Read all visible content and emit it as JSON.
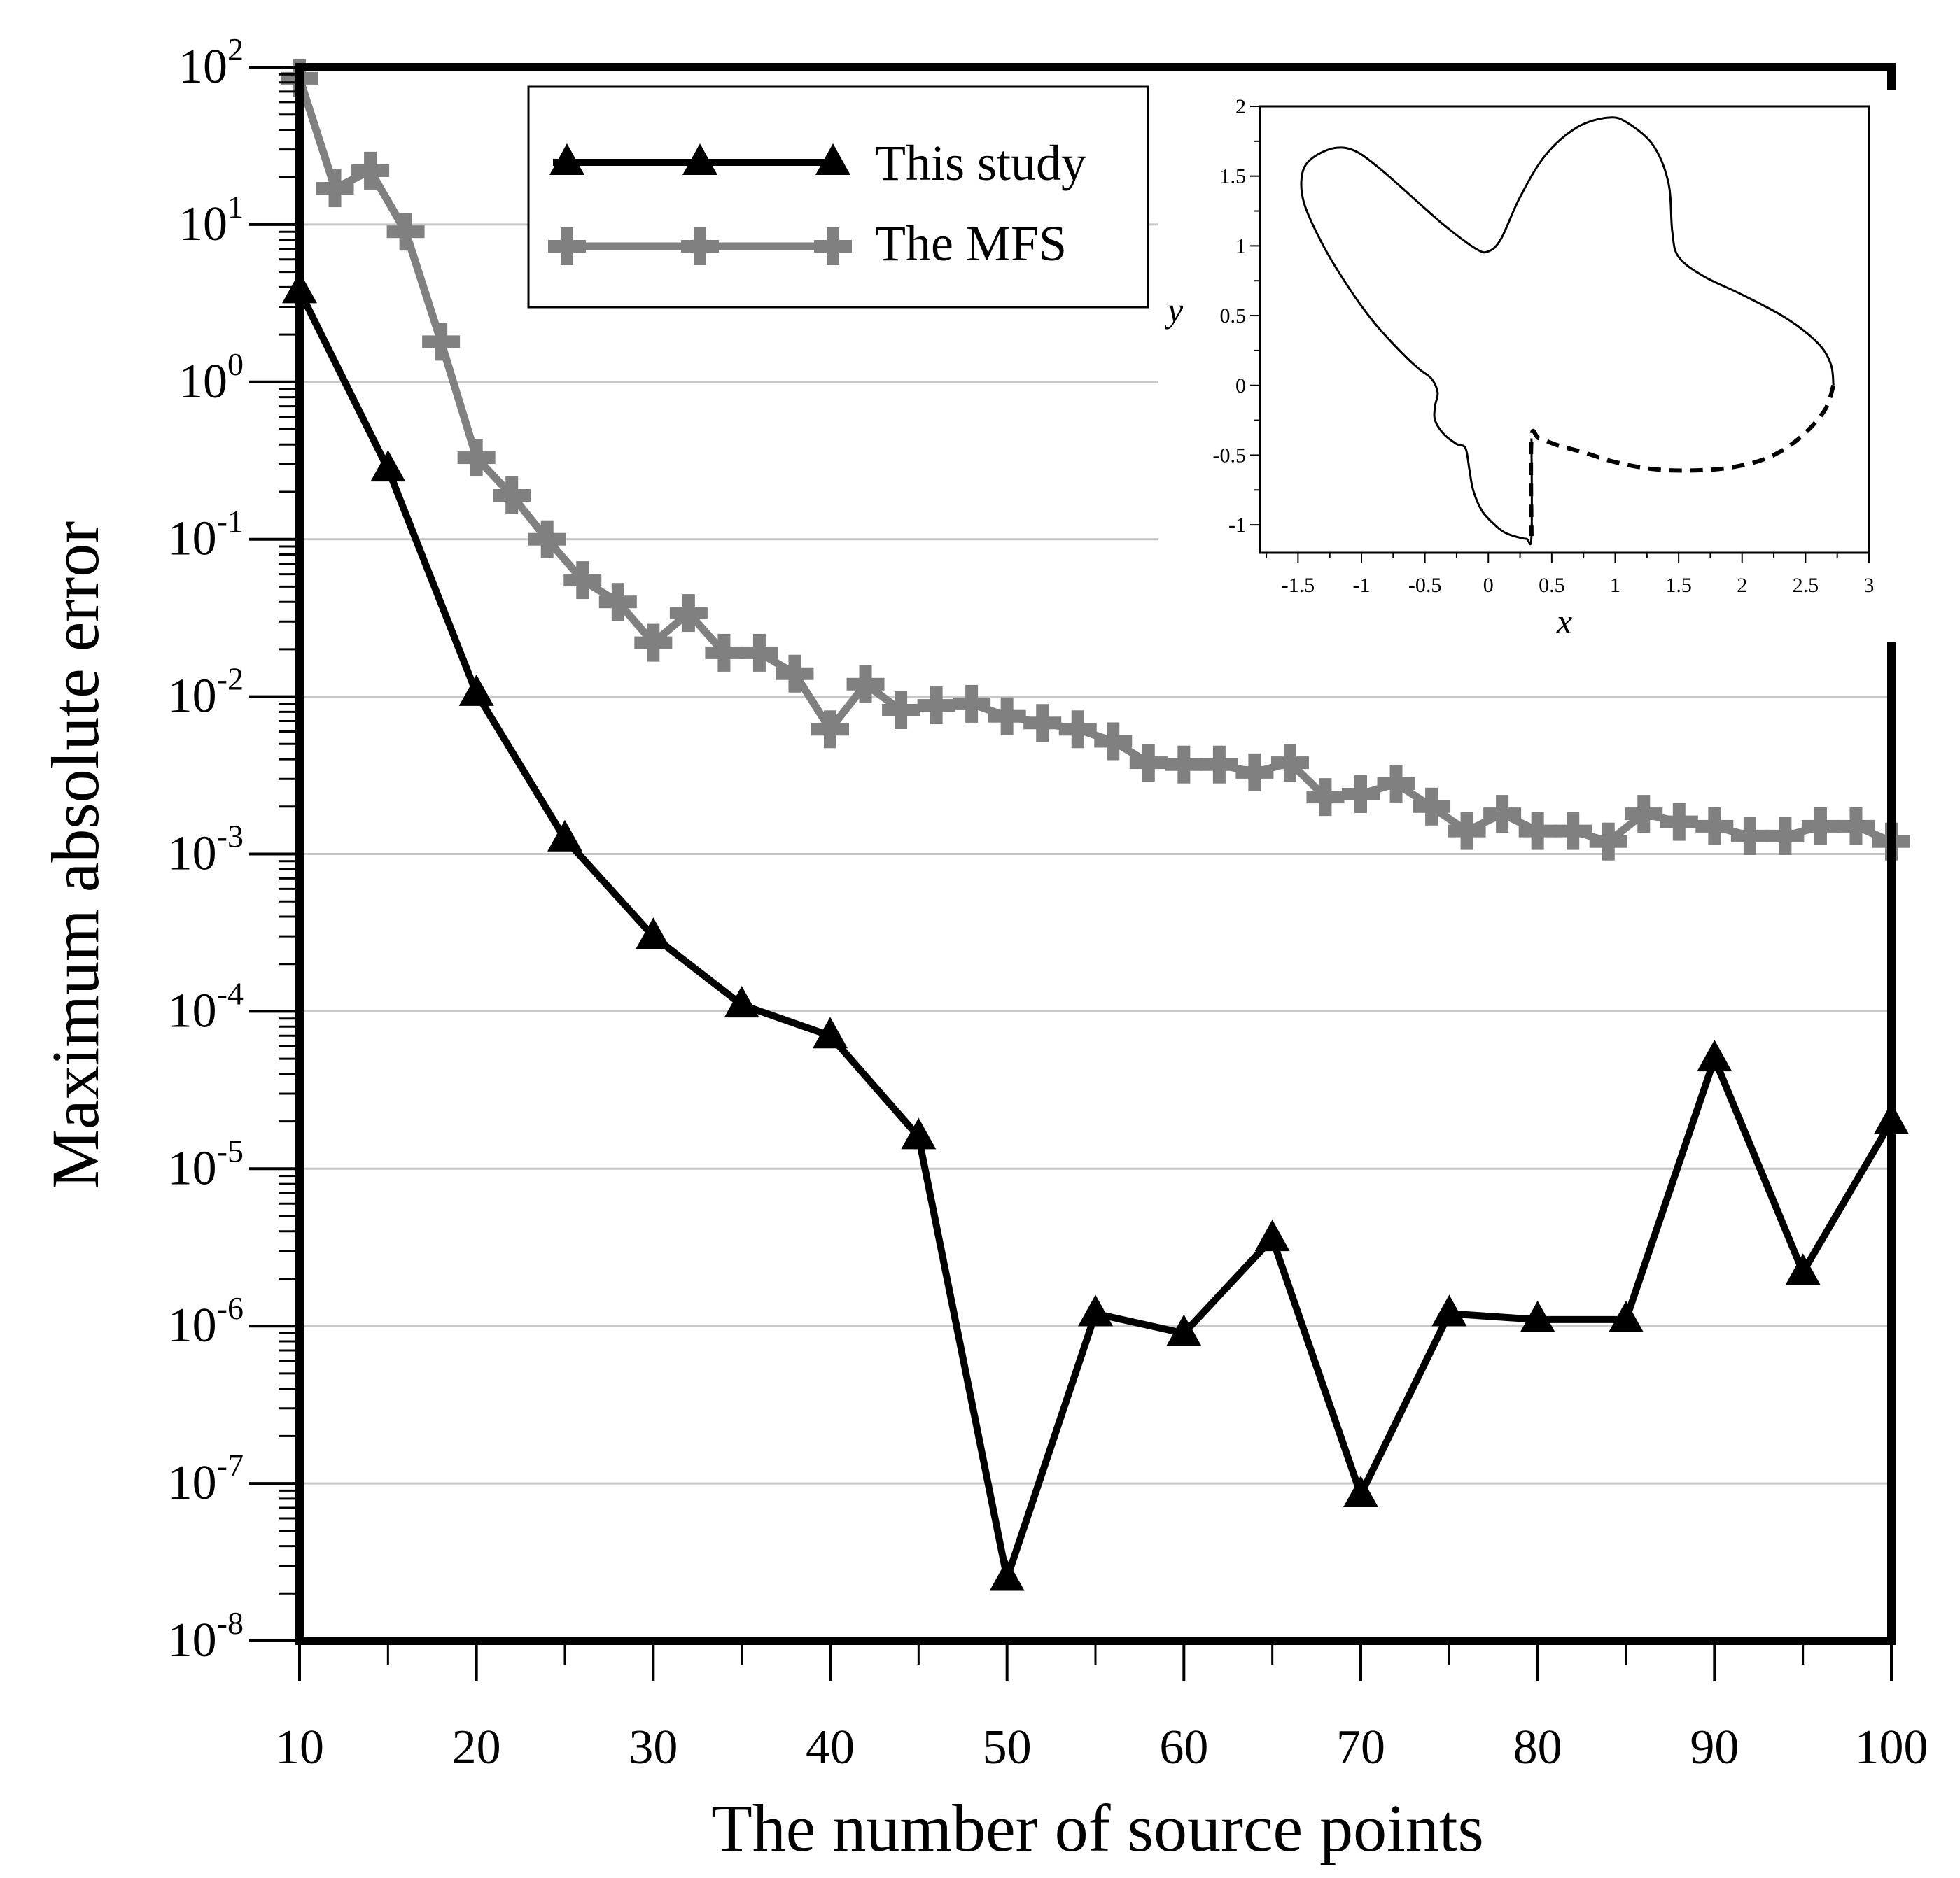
{
  "colors": {
    "this_study": "#000000",
    "mfs": "#808080",
    "grid": "#c8c8c8",
    "frame": "#000000"
  },
  "chart_data": [
    {
      "type": "line",
      "scale": "log-y",
      "xlabel": "The number of source points",
      "ylabel": "Maximum absolute error",
      "xlim": [
        10,
        100
      ],
      "ylim": [
        1e-08,
        100
      ],
      "x_ticks": [
        10,
        20,
        30,
        40,
        50,
        60,
        70,
        80,
        90,
        100
      ],
      "y_ticks": [
        {
          "base": "10",
          "exp": "2",
          "value": 100
        },
        {
          "base": "10",
          "exp": "1",
          "value": 10
        },
        {
          "base": "10",
          "exp": "0",
          "value": 1
        },
        {
          "base": "10",
          "exp": "-1",
          "value": 0.1
        },
        {
          "base": "10",
          "exp": "-2",
          "value": 0.01
        },
        {
          "base": "10",
          "exp": "-3",
          "value": 0.001
        },
        {
          "base": "10",
          "exp": "-4",
          "value": 0.0001
        },
        {
          "base": "10",
          "exp": "-5",
          "value": 1e-05
        },
        {
          "base": "10",
          "exp": "-6",
          "value": 1e-06
        },
        {
          "base": "10",
          "exp": "-7",
          "value": 1e-07
        },
        {
          "base": "10",
          "exp": "-8",
          "value": 1e-08
        }
      ],
      "grid": true,
      "legend_position": "top-left",
      "series": [
        {
          "name": "This study",
          "marker": "triangle",
          "color": "#000000",
          "x": [
            10,
            15,
            20,
            25,
            30,
            35,
            40,
            45,
            50,
            55,
            60,
            65,
            70,
            75,
            80,
            85,
            90,
            95,
            100
          ],
          "y": [
            3.8,
            0.28,
            0.0105,
            0.00125,
            0.0003,
            0.00011,
            7e-05,
            1.6e-05,
            2.5e-08,
            1.2e-06,
            9e-07,
            3.6e-06,
            8.5e-08,
            1.2e-06,
            1.1e-06,
            1.1e-06,
            5e-05,
            2.2e-06,
            2e-05
          ]
        },
        {
          "name": "The MFS",
          "marker": "plus",
          "color": "#808080",
          "x": [
            10,
            12,
            14,
            16,
            18,
            20,
            22,
            24,
            26,
            28,
            30,
            32,
            34,
            36,
            38,
            40,
            42,
            44,
            46,
            48,
            50,
            52,
            54,
            56,
            58,
            60,
            62,
            64,
            66,
            68,
            70,
            72,
            74,
            76,
            78,
            80,
            82,
            84,
            86,
            88,
            90,
            92,
            94,
            96,
            98,
            100
          ],
          "y": [
            85,
            17,
            22,
            9,
            1.8,
            0.33,
            0.19,
            0.1,
            0.055,
            0.04,
            0.022,
            0.034,
            0.019,
            0.019,
            0.014,
            0.0062,
            0.012,
            0.0082,
            0.0088,
            0.009,
            0.0075,
            0.0068,
            0.0062,
            0.0052,
            0.0038,
            0.0037,
            0.0037,
            0.0033,
            0.0038,
            0.0023,
            0.0024,
            0.0028,
            0.002,
            0.0014,
            0.0018,
            0.0014,
            0.0014,
            0.0012,
            0.0018,
            0.0016,
            0.0015,
            0.0013,
            0.0013,
            0.0015,
            0.0015,
            0.0012
          ]
        }
      ]
    },
    {
      "type": "line",
      "role": "inset",
      "xlabel": "x",
      "ylabel": "y",
      "xlim": [
        -1.8,
        3
      ],
      "ylim": [
        -1.2,
        2
      ],
      "x_ticks": [
        "-1.5",
        "-1",
        "-0.5",
        "0",
        "0.5",
        "1",
        "1.5",
        "2",
        "2.5",
        "3"
      ],
      "y_ticks": [
        "2",
        "1.5",
        "1",
        "0.5",
        "0",
        "-0.5",
        "-1"
      ],
      "series": [
        {
          "name": "boundary-solid",
          "style": "solid",
          "x": [
            0.34,
            0.34,
            0.3,
            0.2,
            0.12,
            0.05,
            -0.05,
            -0.12,
            -0.15,
            -0.18,
            -0.25,
            -0.35,
            -0.42,
            -0.42,
            -0.4,
            -0.45,
            -0.55,
            -0.7,
            -0.9,
            -1.1,
            -1.3,
            -1.45,
            -1.47,
            -1.4,
            -1.22,
            -1.05,
            -0.85,
            -0.6,
            -0.35,
            -0.1,
            0.0,
            0.1,
            0.25,
            0.45,
            0.7,
            0.95,
            1.1,
            1.3,
            1.42,
            1.45,
            1.5,
            1.7,
            2.0,
            2.35,
            2.6,
            2.7,
            2.72
          ],
          "y": [
            -0.38,
            -1.08,
            -1.1,
            -1.08,
            -1.05,
            -1.0,
            -0.9,
            -0.75,
            -0.6,
            -0.45,
            -0.42,
            -0.35,
            -0.25,
            -0.15,
            -0.05,
            0.05,
            0.12,
            0.25,
            0.45,
            0.7,
            1.0,
            1.3,
            1.5,
            1.62,
            1.7,
            1.68,
            1.55,
            1.35,
            1.15,
            0.98,
            0.96,
            1.05,
            1.35,
            1.65,
            1.85,
            1.92,
            1.88,
            1.72,
            1.45,
            1.1,
            0.92,
            0.78,
            0.65,
            0.48,
            0.3,
            0.15,
            0.0
          ]
        },
        {
          "name": "boundary-dashed",
          "style": "dashed",
          "x": [
            2.72,
            2.65,
            2.45,
            2.2,
            1.9,
            1.6,
            1.3,
            1.0,
            0.75,
            0.55,
            0.4,
            0.34,
            0.34
          ],
          "y": [
            0.0,
            -0.18,
            -0.38,
            -0.52,
            -0.59,
            -0.61,
            -0.6,
            -0.55,
            -0.48,
            -0.43,
            -0.38,
            -0.38,
            -1.08
          ]
        }
      ]
    }
  ]
}
